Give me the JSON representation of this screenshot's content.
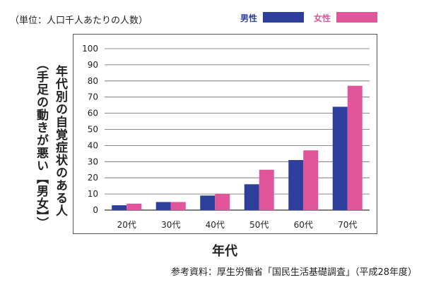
{
  "header": {
    "unit_note": "（単位：人口千人あたりの人数）"
  },
  "legend": [
    {
      "label": "男性",
      "color": "#2e3f9b"
    },
    {
      "label": "女性",
      "color": "#e0559c"
    }
  ],
  "vertical_title": {
    "line1": "年代別の自覚症状のある人",
    "line2": "（手足の動きが悪い【男女】）"
  },
  "footer": {
    "source": "参考資料：厚生労働省「国民生活基礎調査」（平成28年度）"
  },
  "chart_data": {
    "type": "bar",
    "categories": [
      "20代",
      "30代",
      "40代",
      "50代",
      "60代",
      "70代"
    ],
    "series": [
      {
        "name": "男性",
        "values": [
          3,
          5,
          9,
          16,
          31,
          64
        ],
        "color": "#2e3f9b"
      },
      {
        "name": "女性",
        "values": [
          4,
          5,
          10,
          25,
          37,
          77
        ],
        "color": "#e0559c"
      }
    ],
    "yticks": [
      0,
      10,
      20,
      30,
      40,
      50,
      60,
      70,
      80,
      90,
      100
    ],
    "ylim": [
      0,
      100
    ],
    "xlabel": "年代",
    "grid": true,
    "legend_position": "top-right"
  }
}
